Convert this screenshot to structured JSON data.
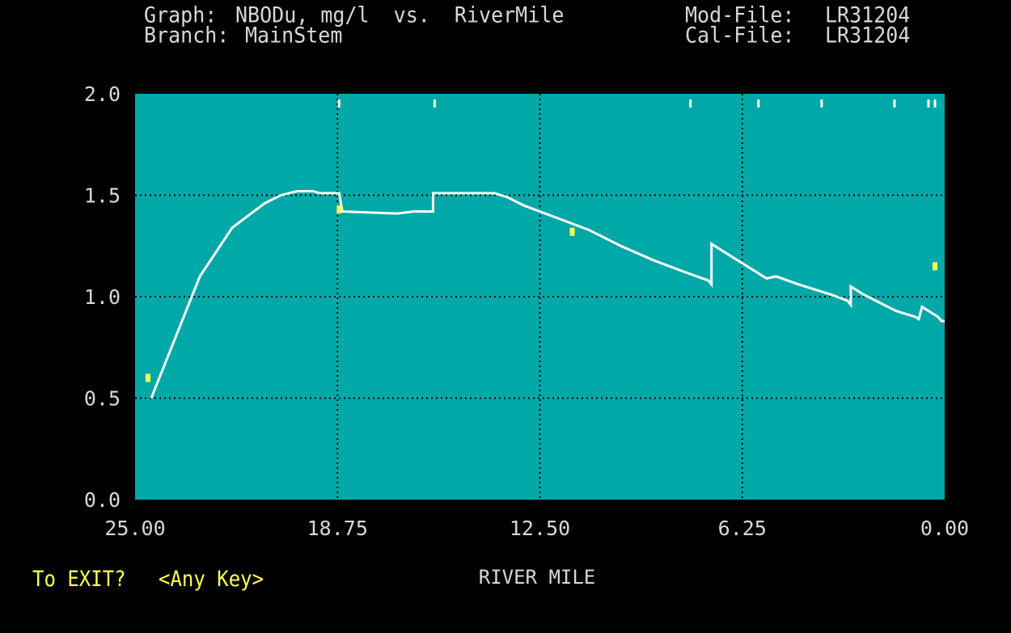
{
  "header": {
    "graph_label": "Graph:",
    "graph_value": "NBODu, mg/l  vs.  RiverMile",
    "branch_label": "Branch:",
    "branch_value": "MainStem",
    "mod_file_label": "Mod-File:",
    "mod_file_value": "LR31204",
    "cal_file_label": "Cal-File:",
    "cal_file_value": "LR31204"
  },
  "footer": {
    "exit_prompt": "To EXIT?",
    "exit_hint": "<Any Key>"
  },
  "colors": {
    "plot_background": "#00a8a8",
    "model_line": "#ffffff",
    "observed_points": "#ffff55",
    "text_gray": "#d8d8d8",
    "prompt_yellow": "#ffff55"
  },
  "chart_data": {
    "type": "line",
    "title": "",
    "xlabel": "RIVER MILE",
    "ylabel": "",
    "xlim": [
      25.0,
      0.0
    ],
    "ylim": [
      0.0,
      2.0
    ],
    "x_reversed": true,
    "x_ticks": [
      "25.00",
      "18.75",
      "12.50",
      "6.25",
      "0.00"
    ],
    "x_tick_values": [
      25.0,
      18.75,
      12.5,
      6.25,
      0.0
    ],
    "y_ticks": [
      "0.0",
      "0.5",
      "1.0",
      "1.5",
      "2.0"
    ],
    "y_tick_values": [
      0.0,
      0.5,
      1.0,
      1.5,
      2.0
    ],
    "grid": "dotted",
    "series": [
      {
        "type": "line",
        "points": [
          [
            24.5,
            0.5
          ],
          [
            23.0,
            1.1
          ],
          [
            22.0,
            1.34
          ],
          [
            21.5,
            1.4
          ],
          [
            21.0,
            1.46
          ],
          [
            20.5,
            1.5
          ],
          [
            20.0,
            1.52
          ],
          [
            19.5,
            1.52
          ],
          [
            19.3,
            1.51
          ],
          [
            18.8,
            1.51
          ],
          [
            18.7,
            1.51
          ],
          [
            18.6,
            1.42
          ],
          [
            16.9,
            1.41
          ],
          [
            16.4,
            1.42
          ],
          [
            15.8,
            1.42
          ],
          [
            15.8,
            1.51
          ],
          [
            13.9,
            1.51
          ],
          [
            13.5,
            1.49
          ],
          [
            13.0,
            1.45
          ],
          [
            12.0,
            1.39
          ],
          [
            11.0,
            1.33
          ],
          [
            10.0,
            1.25
          ],
          [
            9.0,
            1.18
          ],
          [
            8.0,
            1.12
          ],
          [
            7.3,
            1.08
          ],
          [
            7.2,
            1.06
          ],
          [
            7.2,
            1.26
          ],
          [
            6.5,
            1.19
          ],
          [
            6.0,
            1.14
          ],
          [
            5.5,
            1.09
          ],
          [
            5.2,
            1.1
          ],
          [
            4.5,
            1.06
          ],
          [
            3.5,
            1.01
          ],
          [
            3.0,
            0.98
          ],
          [
            2.9,
            0.96
          ],
          [
            2.9,
            1.05
          ],
          [
            2.5,
            1.01
          ],
          [
            2.0,
            0.97
          ],
          [
            1.5,
            0.93
          ],
          [
            0.9,
            0.9
          ],
          [
            0.8,
            0.89
          ],
          [
            0.7,
            0.95
          ],
          [
            0.4,
            0.92
          ],
          [
            0.2,
            0.9
          ],
          [
            0.1,
            0.88
          ],
          [
            0.0,
            0.88
          ]
        ]
      },
      {
        "type": "scatter",
        "points": [
          [
            24.6,
            0.6
          ],
          [
            18.7,
            1.43
          ],
          [
            11.5,
            1.32
          ],
          [
            0.3,
            1.15
          ]
        ]
      }
    ],
    "reach_markers": [
      18.7,
      15.75,
      7.85,
      5.75,
      3.8,
      1.55,
      0.5,
      0.3
    ]
  }
}
